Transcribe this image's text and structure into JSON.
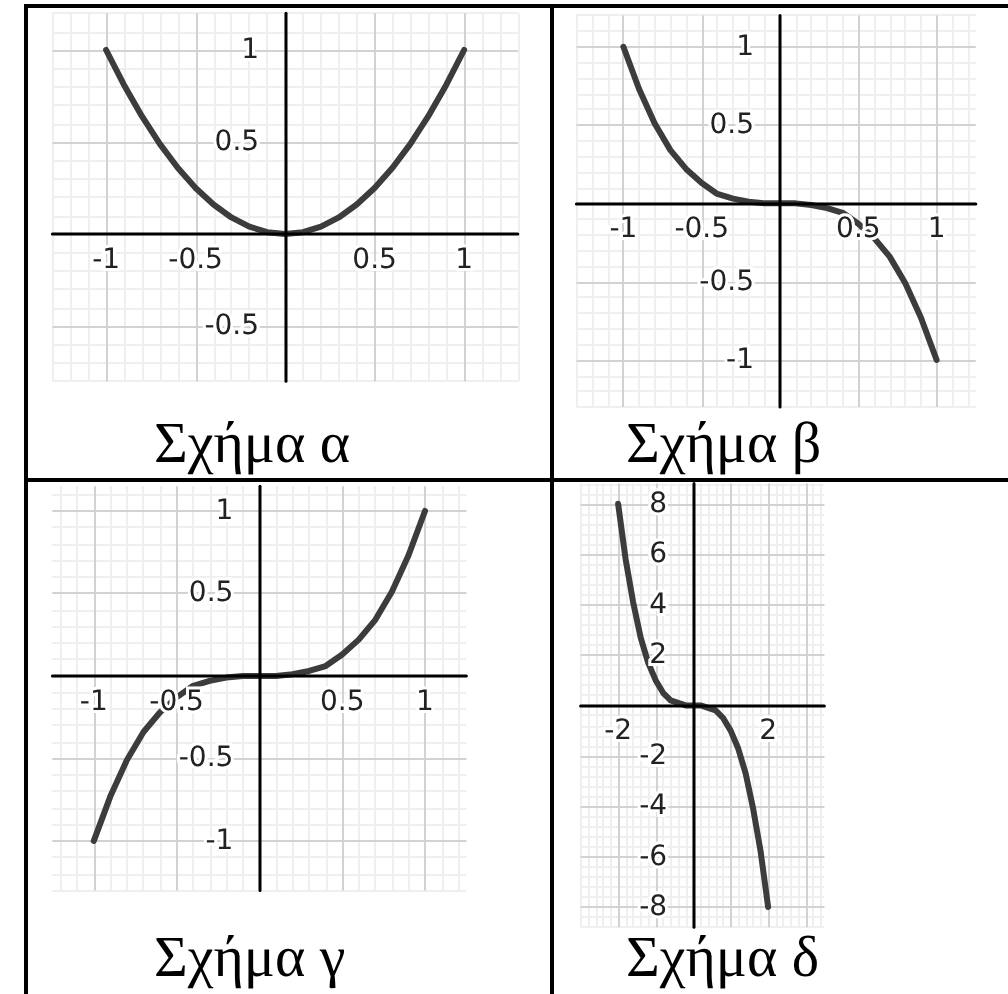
{
  "chart_data": [
    {
      "type": "line",
      "title": "Σχήμα α",
      "x": [
        -1,
        -0.9,
        -0.8,
        -0.7,
        -0.6,
        -0.5,
        -0.4,
        -0.3,
        -0.2,
        -0.1,
        0,
        0.1,
        0.2,
        0.3,
        0.4,
        0.5,
        0.6,
        0.7,
        0.8,
        0.9,
        1
      ],
      "values": [
        1,
        0.81,
        0.64,
        0.49,
        0.36,
        0.25,
        0.16,
        0.09,
        0.04,
        0.01,
        0,
        0.01,
        0.04,
        0.09,
        0.16,
        0.25,
        0.36,
        0.49,
        0.64,
        0.81,
        1
      ],
      "color": "#3c3c3c",
      "marker": "none",
      "xlim": [
        -1.3,
        1.3
      ],
      "ylim": [
        -0.8,
        1.2
      ],
      "xticks": [
        -1,
        -0.5,
        0.5,
        1
      ],
      "yticks": [
        -0.5,
        0.5,
        1
      ],
      "grid": true
    },
    {
      "type": "line",
      "title": "Σχήμα β",
      "x": [
        -1,
        -0.9,
        -0.8,
        -0.7,
        -0.6,
        -0.5,
        -0.4,
        -0.3,
        -0.2,
        -0.1,
        0,
        0.1,
        0.2,
        0.3,
        0.4,
        0.5,
        0.6,
        0.7,
        0.8,
        0.9,
        1
      ],
      "values": [
        1,
        0.73,
        0.51,
        0.34,
        0.22,
        0.13,
        0.06,
        0.03,
        0.01,
        0,
        0,
        0,
        -0.01,
        -0.03,
        -0.06,
        -0.13,
        -0.22,
        -0.34,
        -0.51,
        -0.73,
        -1
      ],
      "color": "#3c3c3c",
      "marker": "none",
      "xlim": [
        -1.3,
        1.25
      ],
      "ylim": [
        -1.3,
        1.2
      ],
      "xticks": [
        -1,
        -0.5,
        0.5,
        1
      ],
      "yticks": [
        -1,
        -0.5,
        0.5,
        1
      ],
      "grid": true
    },
    {
      "type": "line",
      "title": "Σχήμα γ",
      "x": [
        -1,
        -0.9,
        -0.8,
        -0.7,
        -0.6,
        -0.5,
        -0.4,
        -0.3,
        -0.2,
        -0.1,
        0,
        0.1,
        0.2,
        0.3,
        0.4,
        0.5,
        0.6,
        0.7,
        0.8,
        0.9,
        1
      ],
      "values": [
        -1,
        -0.73,
        -0.51,
        -0.34,
        -0.22,
        -0.13,
        -0.06,
        -0.03,
        -0.01,
        0,
        0,
        0,
        0.01,
        0.03,
        0.06,
        0.13,
        0.22,
        0.34,
        0.51,
        0.73,
        1
      ],
      "color": "#3c3c3c",
      "marker": "none",
      "xlim": [
        -1.25,
        1.25
      ],
      "ylim": [
        -1.3,
        1.15
      ],
      "xticks": [
        -1,
        -0.5,
        0.5,
        1
      ],
      "yticks": [
        -1,
        -0.5,
        0.5,
        1
      ],
      "grid": true
    },
    {
      "type": "line",
      "title": "Σχήμα δ",
      "x": [
        -2,
        -1.8,
        -1.6,
        -1.4,
        -1.2,
        -1,
        -0.8,
        -0.6,
        -0.4,
        -0.2,
        0,
        0.2,
        0.4,
        0.6,
        0.8,
        1,
        1.2,
        1.4,
        1.6,
        1.8,
        2
      ],
      "values": [
        8,
        5.8,
        4.1,
        2.7,
        1.7,
        1,
        0.5,
        0.2,
        0.1,
        0,
        0,
        0,
        -0.1,
        -0.2,
        -0.5,
        -1,
        -1.7,
        -2.7,
        -4.1,
        -5.8,
        -8
      ],
      "color": "#3c3c3c",
      "marker": "none",
      "xlim": [
        -3,
        3.5
      ],
      "ylim": [
        -8.8,
        8.8
      ],
      "xticks": [
        -2,
        {
          "value": -1,
          "label": null
        },
        {
          "value": 1,
          "label": null
        },
        2,
        {
          "value": 3,
          "label": null
        }
      ],
      "yticks": [
        -8,
        -6,
        -4,
        -2,
        2,
        4,
        6,
        8
      ],
      "grid": true
    }
  ]
}
